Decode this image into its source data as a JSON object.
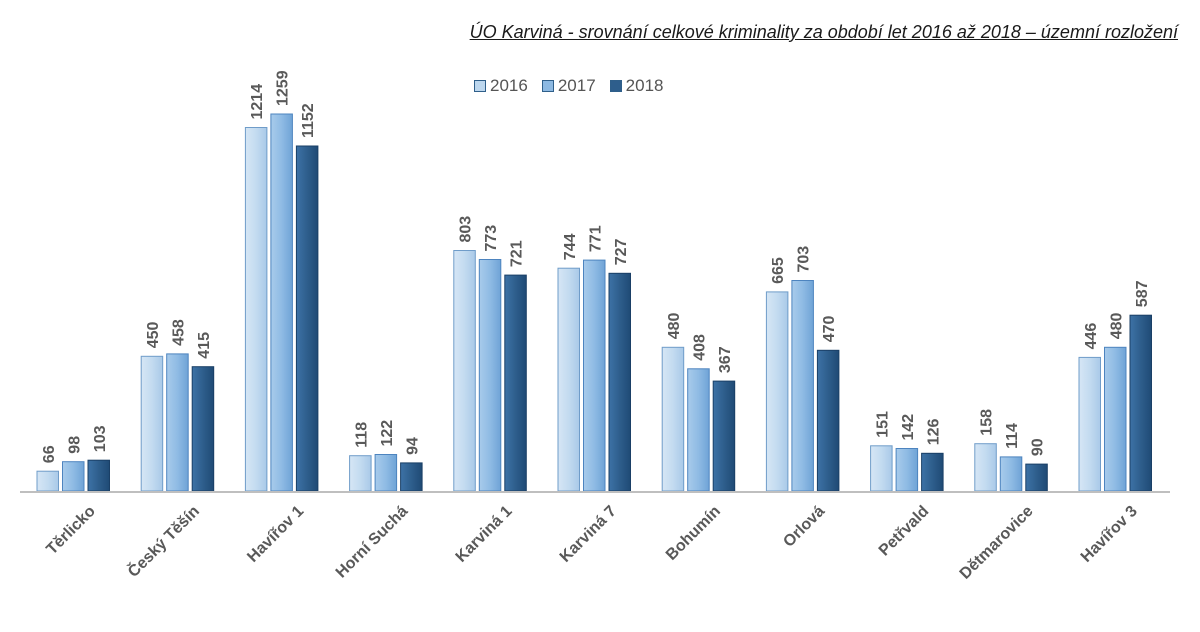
{
  "chart_data": {
    "type": "bar",
    "title": "ÚO Karviná - srovnání celkové kriminality za období let 2016 až 2018 – územní rozložení",
    "categories": [
      "Těrlicko",
      "Český Těšín",
      "Havířov 1",
      "Horní Suchá",
      "Karviná 1",
      "Karviná 7",
      "Bohumín",
      "Orlová",
      "Petřvald",
      "Dětmarovice",
      "Havířov 3"
    ],
    "series": [
      {
        "name": "2016",
        "color": "#bdd7ee",
        "values": [
          66,
          450,
          1214,
          118,
          803,
          744,
          480,
          665,
          151,
          158,
          446
        ]
      },
      {
        "name": "2017",
        "color": "#8db9e2",
        "values": [
          98,
          458,
          1259,
          122,
          773,
          771,
          408,
          703,
          142,
          114,
          480
        ]
      },
      {
        "name": "2018",
        "color": "#2e5e8c",
        "values": [
          103,
          415,
          1152,
          94,
          721,
          727,
          367,
          470,
          126,
          90,
          587
        ]
      }
    ],
    "ylim": [
      0,
      1259
    ],
    "grid": false,
    "legend_position": "top",
    "xlabel": "",
    "ylabel": ""
  }
}
